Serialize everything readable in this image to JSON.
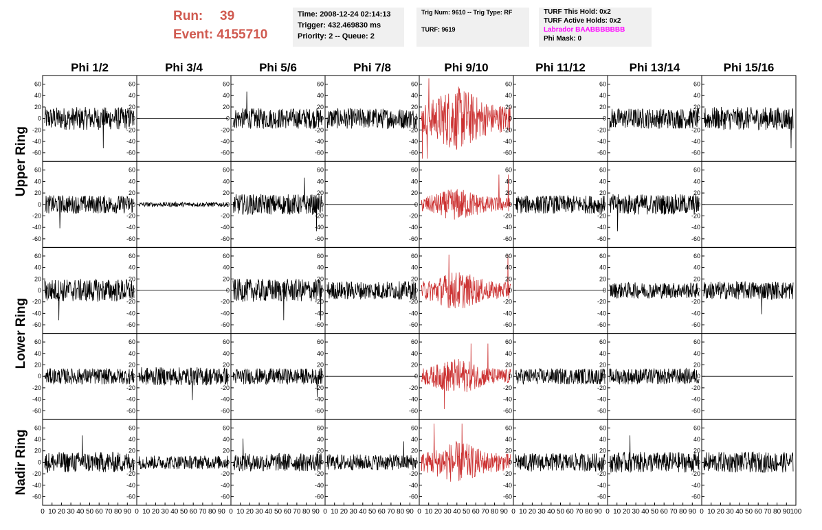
{
  "header": {
    "run_label": "Run:",
    "run_value": "39",
    "event_label": "Event:",
    "event_value": "4155710",
    "time": "Time: 2008-12-24 02:14:13",
    "trigger": "Trigger: 432.469830 ms",
    "priority_queue": "Priority: 2 -- Queue: 2",
    "trig_num_type": "Trig Num: 9610 -- Trig Type: RF",
    "turf": "TURF: 9619",
    "turf_this_hold": "TURF This Hold: 0x2",
    "turf_active_holds": "TURF Active Holds: 0x2",
    "labrador": "Labrador BAABBBBBBB",
    "phi_mask": "Phi Mask: 0"
  },
  "colors": {
    "normal_trace": "#000000",
    "highlight_trace": "#cc3333",
    "run_text": "#d05a50",
    "labrador_text": "#ff00ff"
  },
  "chart_data": {
    "type": "line",
    "columns": [
      "Phi 1/2",
      "Phi 3/4",
      "Phi 5/6",
      "Phi 7/8",
      "Phi 9/10",
      "Phi 11/12",
      "Phi 13/14",
      "Phi 15/16"
    ],
    "row_groups": [
      {
        "label": "Upper Ring",
        "rows": [
          0,
          1
        ]
      },
      {
        "label": "Lower Ring",
        "rows": [
          2,
          3
        ]
      },
      {
        "label": "Nadir Ring",
        "rows": [
          4
        ]
      }
    ],
    "y_ticks": [
      -60,
      -40,
      -20,
      0,
      20,
      40,
      60
    ],
    "ylim": [
      -75,
      75
    ],
    "xlim": [
      0,
      100
    ],
    "x_tick_labels": [
      "0",
      "10",
      "20",
      "30",
      "40",
      "50",
      "60",
      "70",
      "80",
      "90",
      "100"
    ],
    "highlight_column": 4,
    "panels": [
      [
        {
          "amp": 20,
          "spikes": 1
        },
        {
          "amp": 0,
          "spikes": 0
        },
        {
          "amp": 18,
          "spikes": 1
        },
        {
          "amp": 18,
          "spikes": 0
        },
        {
          "amp": 40,
          "spikes": 3
        },
        {
          "amp": 0,
          "spikes": 0
        },
        {
          "amp": 18,
          "spikes": 0
        },
        {
          "amp": 20,
          "spikes": 1
        }
      ],
      [
        {
          "amp": 16,
          "spikes": 1
        },
        {
          "amp": 4,
          "spikes": 0
        },
        {
          "amp": 18,
          "spikes": 2
        },
        {
          "amp": 0,
          "spikes": 0
        },
        {
          "amp": 20,
          "spikes": 2
        },
        {
          "amp": 16,
          "spikes": 0
        },
        {
          "amp": 18,
          "spikes": 1
        },
        {
          "amp": 0,
          "spikes": 0
        }
      ],
      [
        {
          "amp": 20,
          "spikes": 1
        },
        {
          "amp": 0,
          "spikes": 0
        },
        {
          "amp": 20,
          "spikes": 2
        },
        {
          "amp": 16,
          "spikes": 0
        },
        {
          "amp": 24,
          "spikes": 2
        },
        {
          "amp": 0,
          "spikes": 0
        },
        {
          "amp": 14,
          "spikes": 0
        },
        {
          "amp": 16,
          "spikes": 1
        }
      ],
      [
        {
          "amp": 14,
          "spikes": 0
        },
        {
          "amp": 16,
          "spikes": 1
        },
        {
          "amp": 14,
          "spikes": 1
        },
        {
          "amp": 0,
          "spikes": 0
        },
        {
          "amp": 22,
          "spikes": 3
        },
        {
          "amp": 14,
          "spikes": 0
        },
        {
          "amp": 14,
          "spikes": 0
        },
        {
          "amp": 0,
          "spikes": 0
        }
      ],
      [
        {
          "amp": 18,
          "spikes": 1
        },
        {
          "amp": 12,
          "spikes": 0
        },
        {
          "amp": 16,
          "spikes": 1
        },
        {
          "amp": 14,
          "spikes": 1
        },
        {
          "amp": 26,
          "spikes": 2
        },
        {
          "amp": 16,
          "spikes": 0
        },
        {
          "amp": 18,
          "spikes": 1
        },
        {
          "amp": 18,
          "spikes": 0
        }
      ]
    ]
  }
}
